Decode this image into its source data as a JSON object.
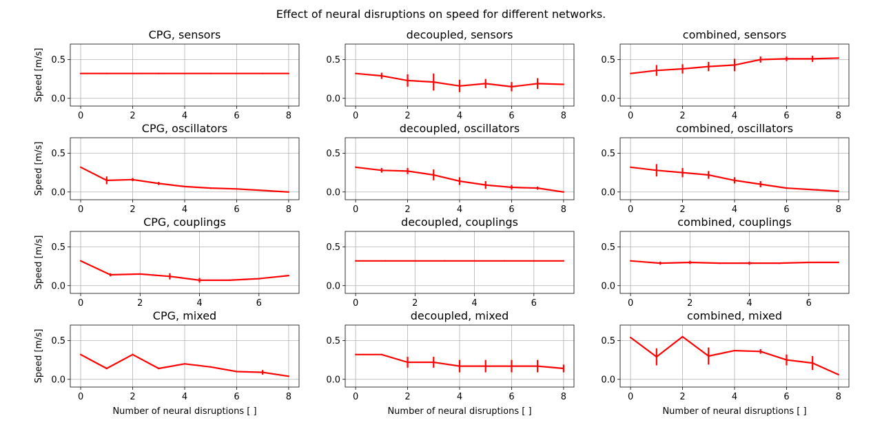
{
  "figure": {
    "suptitle": "Effect of neural disruptions on speed for different networks."
  },
  "chart_data": [
    {
      "type": "line",
      "title": "CPG, sensors",
      "xlabel": "",
      "ylabel": "Speed [m/s]",
      "xlim": [
        -0.4,
        8.4
      ],
      "ylim": [
        -0.1,
        0.7
      ],
      "xticks": [
        0,
        2,
        4,
        6,
        8
      ],
      "yticks": [
        0.0,
        0.5
      ],
      "ytick_labels": [
        "0.0",
        "0.5"
      ],
      "grid": true,
      "color": "#ff0000",
      "x": [
        0,
        1,
        2,
        3,
        4,
        5,
        6,
        7,
        8
      ],
      "y": [
        0.32,
        0.32,
        0.32,
        0.32,
        0.32,
        0.32,
        0.32,
        0.32,
        0.32
      ],
      "err": [
        0,
        0,
        0,
        0,
        0,
        0,
        0,
        0,
        0
      ]
    },
    {
      "type": "line",
      "title": "decoupled, sensors",
      "xlabel": "",
      "ylabel": "",
      "xlim": [
        -0.4,
        8.4
      ],
      "ylim": [
        -0.1,
        0.7
      ],
      "xticks": [
        0,
        2,
        4,
        6,
        8
      ],
      "yticks": [
        0.0,
        0.5
      ],
      "ytick_labels": [
        "0.0",
        "0.5"
      ],
      "grid": true,
      "color": "#ff0000",
      "x": [
        0,
        1,
        2,
        3,
        4,
        5,
        6,
        7,
        8
      ],
      "y": [
        0.32,
        0.29,
        0.23,
        0.21,
        0.16,
        0.19,
        0.15,
        0.19,
        0.18
      ],
      "err": [
        0,
        0.04,
        0.08,
        0.11,
        0.08,
        0.06,
        0.06,
        0.07,
        0
      ]
    },
    {
      "type": "line",
      "title": "combined, sensors",
      "xlabel": "",
      "ylabel": "",
      "xlim": [
        -0.4,
        8.4
      ],
      "ylim": [
        -0.1,
        0.7
      ],
      "xticks": [
        0,
        2,
        4,
        6,
        8
      ],
      "yticks": [
        0.0,
        0.5
      ],
      "ytick_labels": [
        "0.0",
        "0.5"
      ],
      "grid": true,
      "color": "#ff0000",
      "x": [
        0,
        1,
        2,
        3,
        4,
        5,
        6,
        7,
        8
      ],
      "y": [
        0.32,
        0.36,
        0.38,
        0.41,
        0.43,
        0.5,
        0.51,
        0.51,
        0.52
      ],
      "err": [
        0,
        0.07,
        0.06,
        0.06,
        0.08,
        0.04,
        0.03,
        0.04,
        0
      ]
    },
    {
      "type": "line",
      "title": "CPG, oscillators",
      "xlabel": "",
      "ylabel": "Speed [m/s]",
      "xlim": [
        -0.4,
        8.4
      ],
      "ylim": [
        -0.1,
        0.7
      ],
      "xticks": [
        0,
        2,
        4,
        6,
        8
      ],
      "yticks": [
        0.0,
        0.5
      ],
      "ytick_labels": [
        "0.0",
        "0.5"
      ],
      "grid": true,
      "color": "#ff0000",
      "x": [
        0,
        1,
        2,
        3,
        4,
        5,
        6,
        7,
        8
      ],
      "y": [
        0.32,
        0.15,
        0.16,
        0.11,
        0.07,
        0.05,
        0.04,
        0.02,
        0.0
      ],
      "err": [
        0,
        0.05,
        0.02,
        0.02,
        0,
        0.01,
        0,
        0,
        0
      ]
    },
    {
      "type": "line",
      "title": "decoupled, oscillators",
      "xlabel": "",
      "ylabel": "",
      "xlim": [
        -0.4,
        8.4
      ],
      "ylim": [
        -0.1,
        0.7
      ],
      "xticks": [
        0,
        2,
        4,
        6,
        8
      ],
      "yticks": [
        0.0,
        0.5
      ],
      "ytick_labels": [
        "0.0",
        "0.5"
      ],
      "grid": true,
      "color": "#ff0000",
      "x": [
        0,
        1,
        2,
        3,
        4,
        5,
        6,
        7,
        8
      ],
      "y": [
        0.32,
        0.28,
        0.27,
        0.22,
        0.14,
        0.09,
        0.06,
        0.05,
        0.0
      ],
      "err": [
        0,
        0.03,
        0.04,
        0.07,
        0.05,
        0.05,
        0.03,
        0.02,
        0
      ]
    },
    {
      "type": "line",
      "title": "combined, oscillators",
      "xlabel": "",
      "ylabel": "",
      "xlim": [
        -0.4,
        8.4
      ],
      "ylim": [
        -0.1,
        0.7
      ],
      "xticks": [
        0,
        2,
        4,
        6,
        8
      ],
      "yticks": [
        0.0,
        0.5
      ],
      "ytick_labels": [
        "0.0",
        "0.5"
      ],
      "grid": true,
      "color": "#ff0000",
      "x": [
        0,
        1,
        2,
        3,
        4,
        5,
        6,
        7,
        8
      ],
      "y": [
        0.32,
        0.28,
        0.25,
        0.22,
        0.15,
        0.1,
        0.05,
        0.03,
        0.01
      ],
      "err": [
        0,
        0.08,
        0.06,
        0.05,
        0.04,
        0.04,
        0,
        0,
        0
      ]
    },
    {
      "type": "line",
      "title": "CPG, couplings",
      "xlabel": "",
      "ylabel": "Speed [m/s]",
      "xlim": [
        -0.35,
        7.35
      ],
      "ylim": [
        -0.1,
        0.7
      ],
      "xticks": [
        0,
        2,
        4,
        6
      ],
      "yticks": [
        0.0,
        0.5
      ],
      "ytick_labels": [
        "0.0",
        "0.5"
      ],
      "grid": true,
      "color": "#ff0000",
      "x": [
        0,
        1,
        2,
        3,
        4,
        5,
        6,
        7
      ],
      "y": [
        0.32,
        0.14,
        0.15,
        0.12,
        0.07,
        0.07,
        0.09,
        0.13
      ],
      "err": [
        0,
        0.02,
        0,
        0.04,
        0.03,
        0.01,
        0,
        0
      ]
    },
    {
      "type": "line",
      "title": "decoupled, couplings",
      "xlabel": "",
      "ylabel": "",
      "xlim": [
        -0.35,
        7.35
      ],
      "ylim": [
        -0.1,
        0.7
      ],
      "xticks": [
        0,
        2,
        4,
        6
      ],
      "yticks": [
        0.0,
        0.5
      ],
      "ytick_labels": [
        "0.0",
        "0.5"
      ],
      "grid": true,
      "color": "#ff0000",
      "x": [
        0,
        1,
        2,
        3,
        4,
        5,
        6,
        7
      ],
      "y": [
        0.32,
        0.32,
        0.32,
        0.32,
        0.32,
        0.32,
        0.32,
        0.32
      ],
      "err": [
        0,
        0,
        0,
        0,
        0,
        0,
        0,
        0
      ]
    },
    {
      "type": "line",
      "title": "combined, couplings",
      "xlabel": "",
      "ylabel": "",
      "xlim": [
        -0.35,
        7.35
      ],
      "ylim": [
        -0.1,
        0.7
      ],
      "xticks": [
        0,
        2,
        4,
        6
      ],
      "yticks": [
        0.0,
        0.5
      ],
      "ytick_labels": [
        "0.0",
        "0.5"
      ],
      "grid": true,
      "color": "#ff0000",
      "x": [
        0,
        1,
        2,
        3,
        4,
        5,
        6,
        7
      ],
      "y": [
        0.32,
        0.29,
        0.3,
        0.29,
        0.29,
        0.29,
        0.3,
        0.3
      ],
      "err": [
        0,
        0.02,
        0.02,
        0.01,
        0.02,
        0.01,
        0,
        0
      ]
    },
    {
      "type": "line",
      "title": "CPG, mixed",
      "xlabel": "Number of neural disruptions [ ]",
      "ylabel": "Speed [m/s]",
      "xlim": [
        -0.4,
        8.4
      ],
      "ylim": [
        -0.1,
        0.7
      ],
      "xticks": [
        0,
        2,
        4,
        6,
        8
      ],
      "yticks": [
        0.0,
        0.5
      ],
      "ytick_labels": [
        "0.0",
        "0.5"
      ],
      "grid": true,
      "color": "#ff0000",
      "x": [
        0,
        1,
        2,
        3,
        4,
        5,
        6,
        7,
        8
      ],
      "y": [
        0.32,
        0.14,
        0.32,
        0.14,
        0.2,
        0.16,
        0.1,
        0.09,
        0.04
      ],
      "err": [
        0,
        0.01,
        0,
        0.01,
        0,
        0,
        0,
        0.03,
        0
      ]
    },
    {
      "type": "line",
      "title": "decoupled, mixed",
      "xlabel": "Number of neural disruptions [ ]",
      "ylabel": "",
      "xlim": [
        -0.4,
        8.4
      ],
      "ylim": [
        -0.1,
        0.7
      ],
      "xticks": [
        0,
        2,
        4,
        6,
        8
      ],
      "yticks": [
        0.0,
        0.5
      ],
      "ytick_labels": [
        "0.0",
        "0.5"
      ],
      "grid": true,
      "color": "#ff0000",
      "x": [
        0,
        1,
        2,
        3,
        4,
        5,
        6,
        7,
        8
      ],
      "y": [
        0.32,
        0.32,
        0.22,
        0.22,
        0.17,
        0.17,
        0.17,
        0.17,
        0.14
      ],
      "err": [
        0,
        0,
        0.07,
        0.07,
        0.08,
        0.08,
        0.08,
        0.08,
        0.05
      ]
    },
    {
      "type": "line",
      "title": "combined, mixed",
      "xlabel": "Number of neural disruptions [ ]",
      "ylabel": "",
      "xlim": [
        -0.4,
        8.4
      ],
      "ylim": [
        -0.1,
        0.7
      ],
      "xticks": [
        0,
        2,
        4,
        6,
        8
      ],
      "yticks": [
        0.0,
        0.5
      ],
      "ytick_labels": [
        "0.0",
        "0.5"
      ],
      "grid": true,
      "color": "#ff0000",
      "x": [
        0,
        1,
        2,
        3,
        4,
        5,
        6,
        7,
        8
      ],
      "y": [
        0.54,
        0.29,
        0.55,
        0.3,
        0.37,
        0.36,
        0.25,
        0.21,
        0.06
      ],
      "err": [
        0,
        0.11,
        0,
        0.11,
        0,
        0.03,
        0.07,
        0.09,
        0
      ]
    }
  ]
}
